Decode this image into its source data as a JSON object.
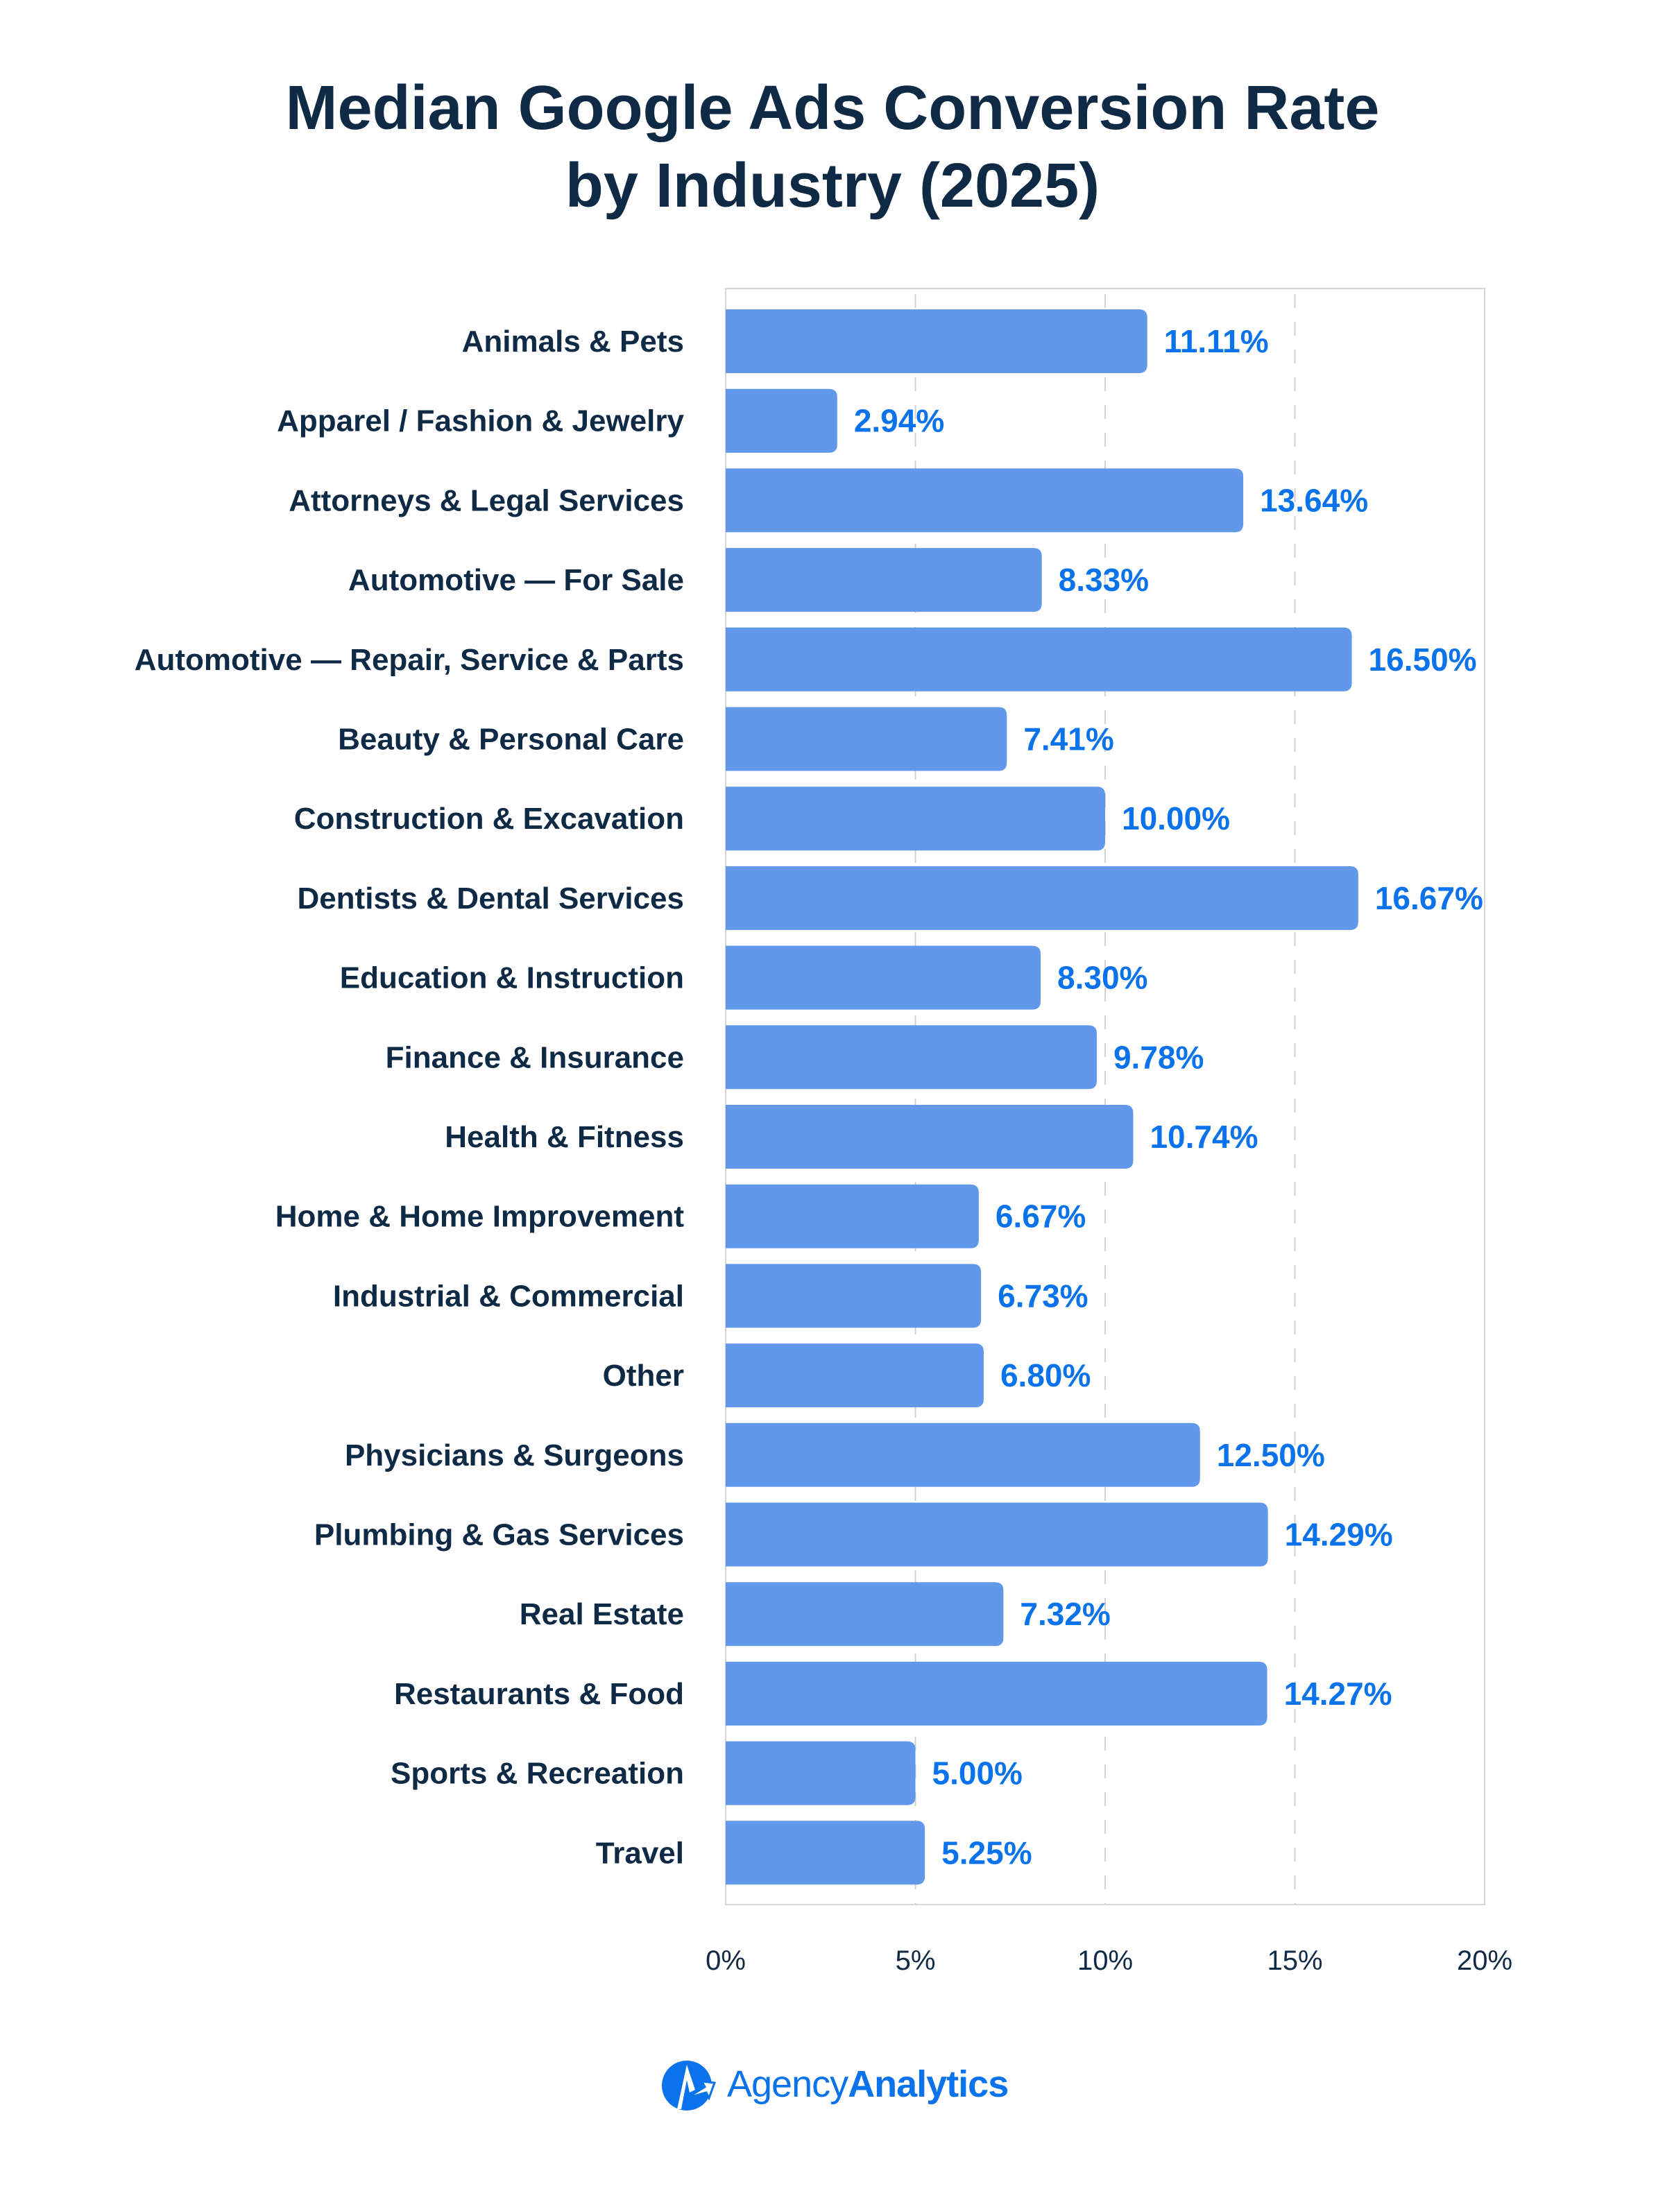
{
  "chart_data": {
    "type": "bar",
    "orientation": "horizontal",
    "title": "Median Google Ads Conversion Rate by Industry (2025)",
    "title_lines": [
      "Median Google Ads Conversion Rate",
      "by Industry (2025)"
    ],
    "categories": [
      "Animals & Pets",
      "Apparel / Fashion & Jewelry",
      "Attorneys & Legal Services",
      "Automotive — For Sale",
      "Automotive — Repair, Service & Parts",
      "Beauty & Personal Care",
      "Construction & Excavation",
      "Dentists & Dental Services",
      "Education & Instruction",
      "Finance & Insurance",
      "Health & Fitness",
      "Home & Home Improvement",
      "Industrial & Commercial",
      "Other",
      "Physicians & Surgeons",
      "Plumbing & Gas Services",
      "Real Estate",
      "Restaurants & Food",
      "Sports & Recreation",
      "Travel"
    ],
    "values": [
      11.11,
      2.94,
      13.64,
      8.33,
      16.5,
      7.41,
      10.0,
      16.67,
      8.3,
      9.78,
      10.74,
      6.67,
      6.73,
      6.8,
      12.5,
      14.29,
      7.32,
      14.27,
      5.0,
      5.25
    ],
    "data_labels": [
      "11.11%",
      "2.94%",
      "13.64%",
      "8.33%",
      "16.50%",
      "7.41%",
      "10.00%",
      "16.67%",
      "8.30%",
      "9.78%",
      "10.74%",
      "6.67%",
      "6.73%",
      "6.80%",
      "12.50%",
      "14.29%",
      "7.32%",
      "14.27%",
      "5.00%",
      "5.25%"
    ],
    "xlim": [
      0,
      20
    ],
    "xticks": [
      0,
      5,
      10,
      15,
      20
    ],
    "xtick_labels": [
      "0%",
      "5%",
      "10%",
      "15%",
      "20%"
    ],
    "xlabel": "",
    "ylabel": "",
    "grid": "vertical dashed",
    "colors": {
      "bar": "#6198ea",
      "label": "#0a73eb",
      "text": "#0f2a44",
      "grid": "#d0d0d0"
    }
  },
  "brand": {
    "part1": "Agency",
    "part2": "Analytics",
    "color": "#0a73eb"
  }
}
